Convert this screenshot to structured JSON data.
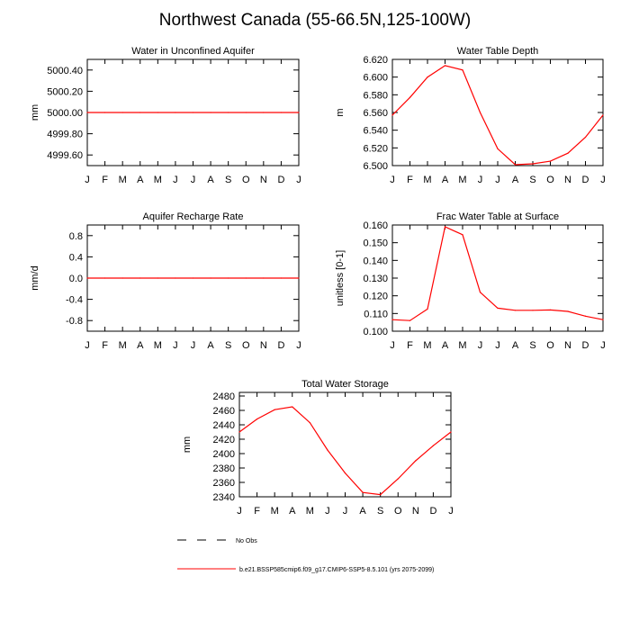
{
  "page": {
    "title": "Northwest Canada (55-66.5N,125-100W)"
  },
  "chart_data": [
    {
      "id": "aquifer",
      "type": "line",
      "title": "Water in Unconfined Aquifer",
      "xlabel": "",
      "ylabel": "mm",
      "categories": [
        "J",
        "F",
        "M",
        "A",
        "M",
        "J",
        "J",
        "A",
        "S",
        "O",
        "N",
        "D",
        "J"
      ],
      "yticks": [
        "4999.60",
        "4999.80",
        "5000.00",
        "5000.20",
        "5000.40"
      ],
      "ytick_values": [
        4999.6,
        4999.8,
        5000.0,
        5000.2,
        5000.4
      ],
      "ylim": [
        4999.5,
        5000.5
      ],
      "series": [
        {
          "color": "#ff0000",
          "values": [
            5000,
            5000,
            5000,
            5000,
            5000,
            5000,
            5000,
            5000,
            5000,
            5000,
            5000,
            5000,
            5000
          ]
        }
      ]
    },
    {
      "id": "wtd",
      "type": "line",
      "title": "Water Table Depth",
      "xlabel": "",
      "ylabel": "m",
      "categories": [
        "J",
        "F",
        "M",
        "A",
        "M",
        "J",
        "J",
        "A",
        "S",
        "O",
        "N",
        "D",
        "J"
      ],
      "yticks": [
        "6.500",
        "6.520",
        "6.540",
        "6.560",
        "6.580",
        "6.600",
        "6.620"
      ],
      "ytick_values": [
        6.5,
        6.52,
        6.54,
        6.56,
        6.58,
        6.6,
        6.62
      ],
      "ylim": [
        6.5,
        6.62
      ],
      "series": [
        {
          "color": "#ff0000",
          "values": [
            6.557,
            6.577,
            6.6,
            6.613,
            6.608,
            6.56,
            6.519,
            6.501,
            6.502,
            6.505,
            6.514,
            6.532,
            6.557
          ]
        }
      ]
    },
    {
      "id": "recharge",
      "type": "line",
      "title": "Aquifer Recharge Rate",
      "xlabel": "",
      "ylabel": "mm/d",
      "categories": [
        "J",
        "F",
        "M",
        "A",
        "M",
        "J",
        "J",
        "A",
        "S",
        "O",
        "N",
        "D",
        "J"
      ],
      "yticks": [
        "-0.8",
        "-0.4",
        "0.0",
        "0.4",
        "0.8"
      ],
      "ytick_values": [
        -0.8,
        -0.4,
        0.0,
        0.4,
        0.8
      ],
      "ylim": [
        -1.0,
        1.0
      ],
      "series": [
        {
          "color": "#ff0000",
          "values": [
            0,
            0,
            0,
            0,
            0,
            0,
            0,
            0,
            0,
            0,
            0,
            0,
            0
          ]
        }
      ]
    },
    {
      "id": "fwts",
      "type": "line",
      "title": "Frac Water Table at Surface",
      "xlabel": "",
      "ylabel": "unitless [0-1]",
      "categories": [
        "J",
        "F",
        "M",
        "A",
        "M",
        "J",
        "J",
        "A",
        "S",
        "O",
        "N",
        "D",
        "J"
      ],
      "yticks": [
        "0.100",
        "0.110",
        "0.120",
        "0.130",
        "0.140",
        "0.150",
        "0.160"
      ],
      "ytick_values": [
        0.1,
        0.11,
        0.12,
        0.13,
        0.14,
        0.15,
        0.16
      ],
      "ylim": [
        0.1,
        0.16
      ],
      "series": [
        {
          "color": "#ff0000",
          "values": [
            0.1065,
            0.106,
            0.1125,
            0.159,
            0.1545,
            0.122,
            0.113,
            0.1118,
            0.1118,
            0.112,
            0.1112,
            0.1085,
            0.1065
          ]
        }
      ]
    },
    {
      "id": "tws",
      "type": "line",
      "title": "Total Water Storage",
      "xlabel": "",
      "ylabel": "mm",
      "categories": [
        "J",
        "F",
        "M",
        "A",
        "M",
        "J",
        "J",
        "A",
        "S",
        "O",
        "N",
        "D",
        "J"
      ],
      "yticks": [
        "2340",
        "2360",
        "2380",
        "2400",
        "2420",
        "2440",
        "2460",
        "2480"
      ],
      "ytick_values": [
        2340,
        2360,
        2380,
        2400,
        2420,
        2440,
        2460,
        2480
      ],
      "ylim": [
        2340,
        2485
      ],
      "series": [
        {
          "color": "#ff0000",
          "values": [
            2430,
            2448,
            2461,
            2465,
            2443,
            2405,
            2373,
            2346,
            2343,
            2365,
            2390,
            2411,
            2430
          ]
        }
      ]
    }
  ],
  "legend": [
    {
      "label": "No Obs",
      "color": "#000000",
      "style": "dashed"
    },
    {
      "label": "b.e21.BSSP585cmip6.f09_g17.CMIP6-SSP5-8.5.101 (yrs 2075-2099)",
      "color": "#ff0000",
      "style": "solid"
    }
  ]
}
